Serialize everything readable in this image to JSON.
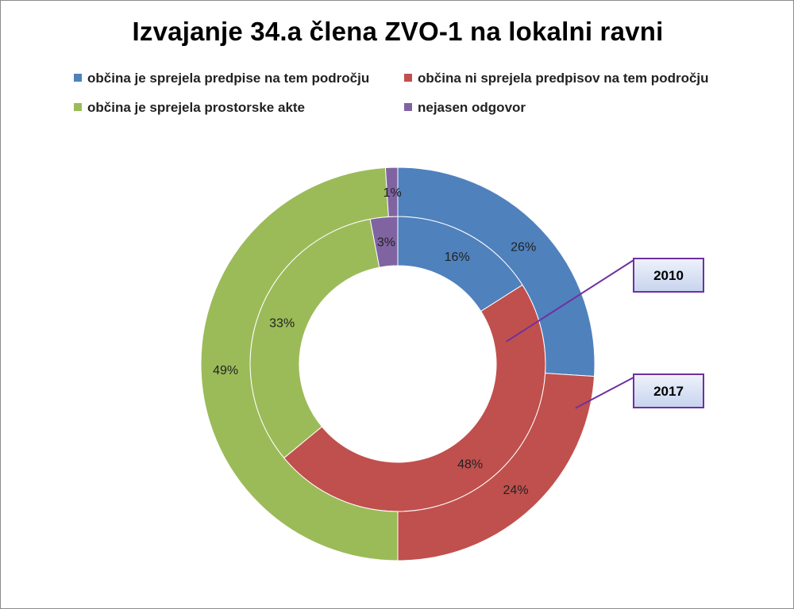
{
  "chart_data": {
    "type": "pie",
    "subtype": "doughnut",
    "title": "Izvajanje 34.a člena ZVO-1 na lokalni ravni",
    "legend_position": "top",
    "categories": [
      "občina je sprejela predpise na tem področju",
      "občina ni sprejela predpisov na tem področju",
      "občina je sprejela prostorske akte",
      "nejasen odgovor"
    ],
    "colors": [
      "#4f81bd",
      "#c0504d",
      "#9bbb59",
      "#8064a2"
    ],
    "series": [
      {
        "name": "2010",
        "ring": "inner",
        "values": [
          16,
          48,
          33,
          3
        ],
        "labels": [
          "16%",
          "48%",
          "33%",
          "3%"
        ]
      },
      {
        "name": "2017",
        "ring": "outer",
        "values": [
          26,
          24,
          49,
          1
        ],
        "labels": [
          "26%",
          "24%",
          "49%",
          "1%"
        ]
      }
    ]
  }
}
